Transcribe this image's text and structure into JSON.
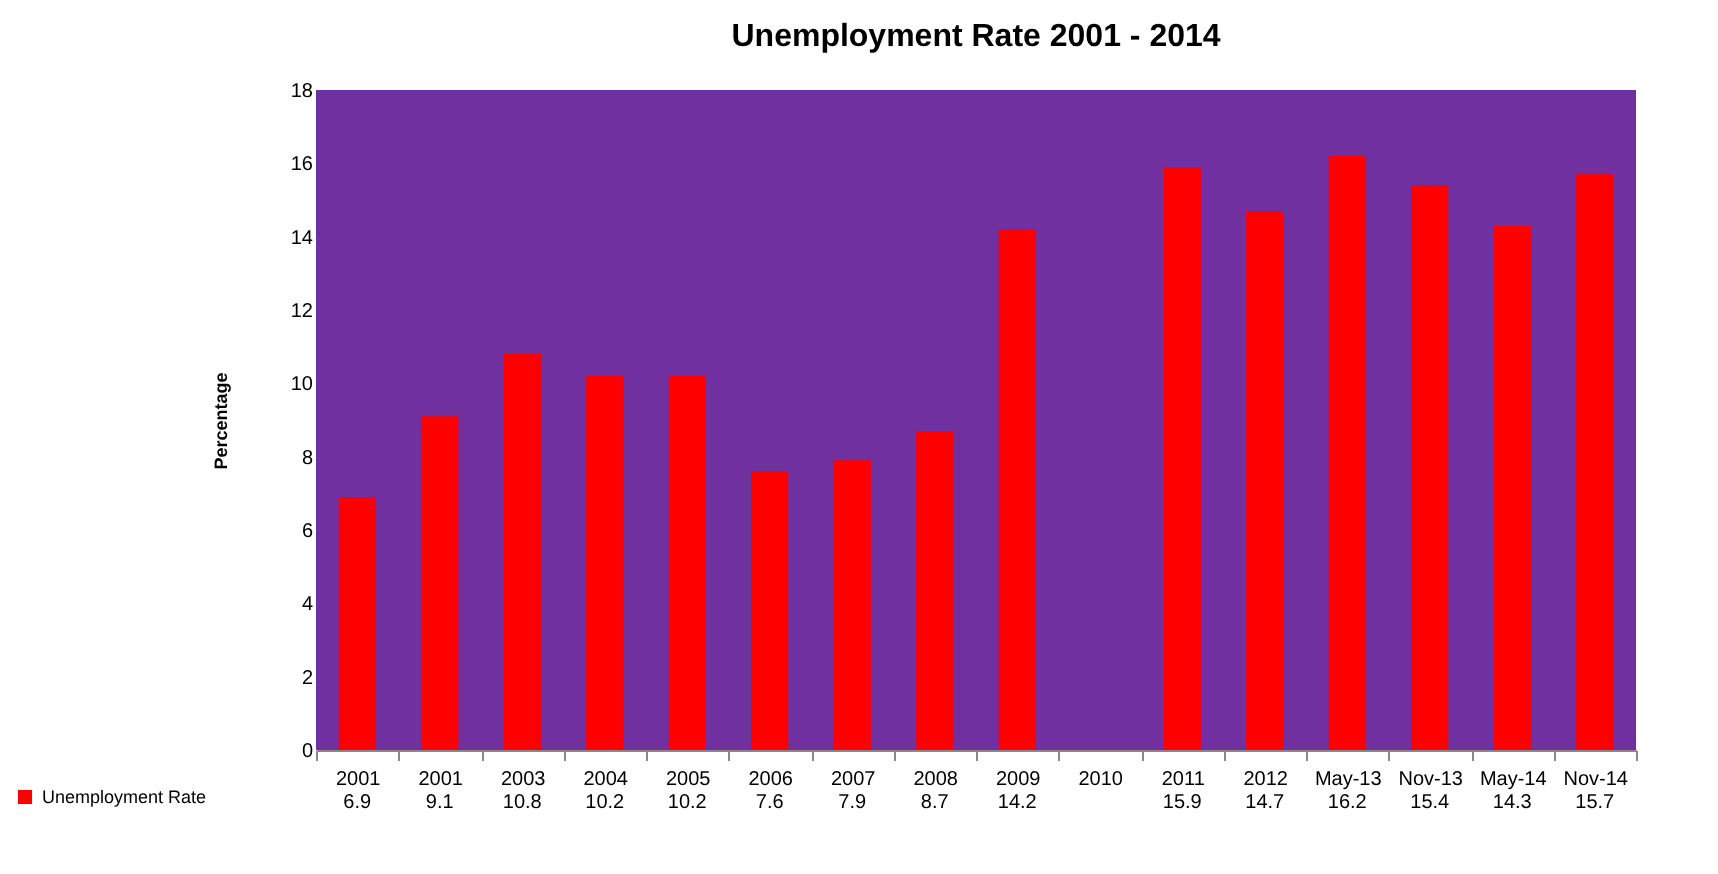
{
  "chart_data": {
    "type": "bar",
    "title": "Unemployment Rate 2001 - 2014",
    "ylabel": "Percentage",
    "categories": [
      "2001",
      "2001",
      "2003",
      "2004",
      "2005",
      "2006",
      "2007",
      "2008",
      "2009",
      "2010",
      "2011",
      "2012",
      "May-13",
      "Nov-13",
      "May-14",
      "Nov-14"
    ],
    "series": [
      {
        "name": "Unemployment Rate",
        "color": "#ff0000",
        "values": [
          6.9,
          9.1,
          10.8,
          10.2,
          10.2,
          7.6,
          7.9,
          8.7,
          14.2,
          null,
          15.9,
          14.7,
          16.2,
          15.4,
          14.3,
          15.7
        ]
      }
    ],
    "ylim": [
      0,
      18
    ],
    "yticks": [
      0,
      2,
      4,
      6,
      8,
      10,
      12,
      14,
      16,
      18
    ],
    "grid": false,
    "legend": "bottom left",
    "data_labels": true
  }
}
